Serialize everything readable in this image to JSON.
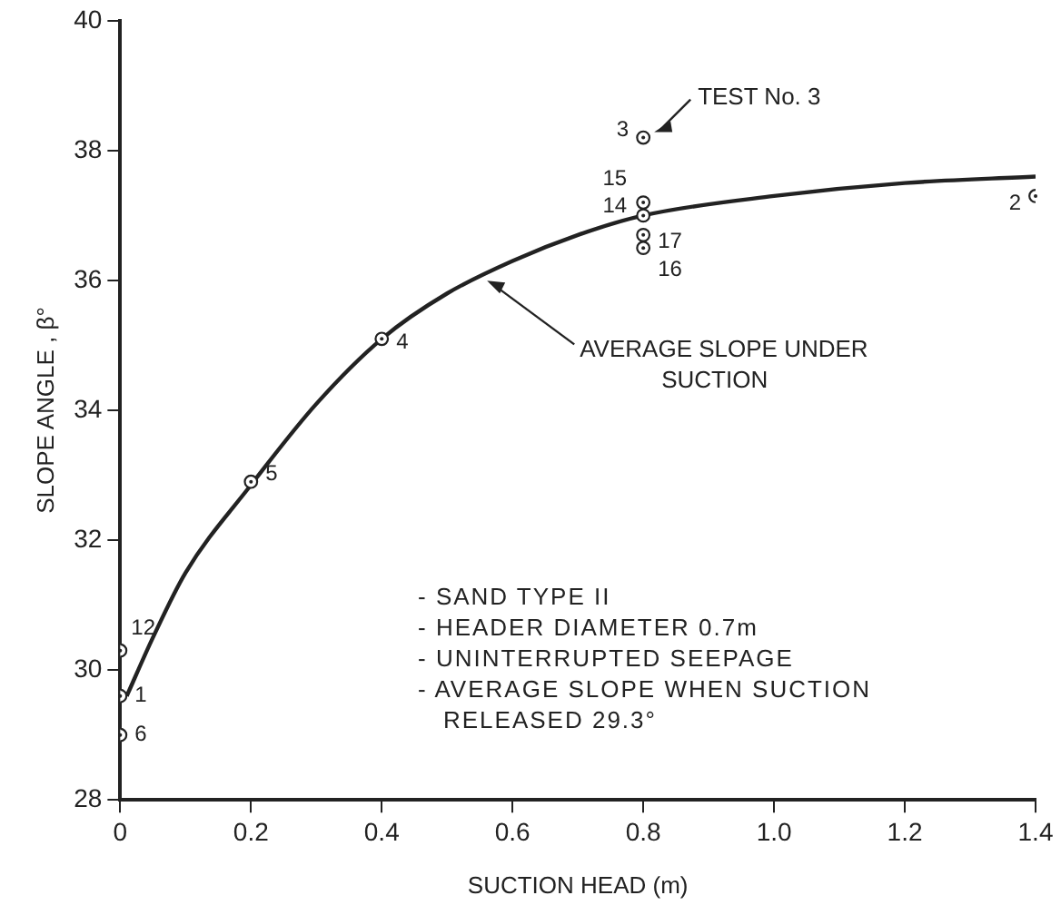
{
  "chart_data": {
    "type": "scatter",
    "xlabel": "SUCTION HEAD (m)",
    "ylabel": "SLOPE ANGLE , β°",
    "xlim": [
      0,
      1.4
    ],
    "xticks": [
      0,
      0.2,
      0.4,
      0.6,
      0.8,
      {
        "value": 1,
        "label": "1.0"
      },
      1.2,
      1.4
    ],
    "ylim": [
      28,
      40
    ],
    "yticks": [
      28,
      30,
      32,
      34,
      36,
      38,
      40
    ],
    "grid": false,
    "legend": false,
    "series": [
      {
        "color": "#222222",
        "marker": "circle",
        "x": [
          0,
          0,
          0,
          0.2,
          0.4,
          0.8,
          0.8,
          0.8,
          0.8,
          0.8,
          1.4
        ],
        "values": [
          29.0,
          29.6,
          30.3,
          32.9,
          35.1,
          38.2,
          37.2,
          37.0,
          36.7,
          36.5,
          37.3
        ]
      },
      {
        "type": "line",
        "color": "#222222",
        "marker": "none",
        "line_style": "solid",
        "x": [
          0.01,
          0.05,
          0.1,
          0.2,
          0.3,
          0.4,
          0.5,
          0.6,
          0.7,
          0.8,
          1.0,
          1.2,
          1.4
        ],
        "values": [
          29.6,
          30.5,
          31.5,
          32.85,
          34.1,
          35.1,
          35.8,
          36.3,
          36.7,
          37.0,
          37.3,
          37.5,
          37.6
        ]
      }
    ],
    "annotations": [
      {
        "text": "6",
        "x": 0,
        "y": 29.0
      },
      {
        "text": "1",
        "x": 0,
        "y": 29.6
      },
      {
        "text": "12",
        "x": 0,
        "y": 30.3
      },
      {
        "text": "5",
        "x": 0.2,
        "y": 32.9
      },
      {
        "text": "4",
        "x": 0.4,
        "y": 35.1
      },
      {
        "text": "3",
        "x": 0.8,
        "y": 38.2
      },
      {
        "text": "15",
        "x": 0.8,
        "y": 37.2
      },
      {
        "text": "14",
        "x": 0.8,
        "y": 37.0
      },
      {
        "text": "17",
        "x": 0.8,
        "y": 36.7
      },
      {
        "text": "16",
        "x": 0.8,
        "y": 36.5
      },
      {
        "text": "2",
        "x": 1.4,
        "y": 37.3
      },
      {
        "text": "TEST No. 3",
        "x": 0.8,
        "y": 38.2
      },
      {
        "text": "AVERAGE SLOPE UNDER SUCTION",
        "x": 0.55,
        "y": 36.05
      },
      "- SAND TYPE II",
      "- HEADER DIAMETER 0.7m",
      "- UNINTERRUPTED SEEPAGE",
      "- AVERAGE SLOPE WHEN SUCTION RELEASED 29.3°"
    ]
  }
}
